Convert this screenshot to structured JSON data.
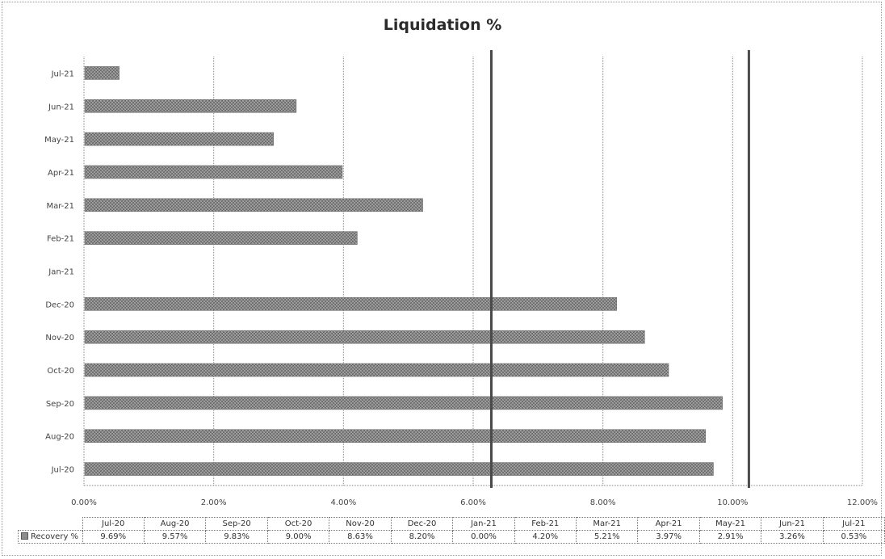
{
  "chart_data": {
    "type": "bar",
    "orientation": "horizontal",
    "title": "Liquidation %",
    "categories": [
      "Jul-20",
      "Aug-20",
      "Sep-20",
      "Oct-20",
      "Nov-20",
      "Dec-20",
      "Jan-21",
      "Feb-21",
      "Mar-21",
      "Apr-21",
      "May-21",
      "Jun-21",
      "Jul-21"
    ],
    "series": [
      {
        "name": "Recovery %",
        "values": [
          9.69,
          9.57,
          9.83,
          9.0,
          8.63,
          8.2,
          0.0,
          4.2,
          5.21,
          3.97,
          2.91,
          3.26,
          0.53
        ],
        "labels": [
          "9.69%",
          "9.57%",
          "9.83%",
          "9.00%",
          "8.63%",
          "8.20%",
          "0.00%",
          "4.20%",
          "5.21%",
          "3.97%",
          "2.91%",
          "3.26%",
          "0.53%"
        ],
        "color": "#8c8c8c"
      }
    ],
    "xlim": [
      0,
      12
    ],
    "x_ticks": [
      "0.00%",
      "2.00%",
      "4.00%",
      "6.00%",
      "8.00%",
      "10.00%",
      "12.00%"
    ],
    "grid": true,
    "reference_lines": [
      6.28,
      10.25
    ],
    "data_table": true
  }
}
